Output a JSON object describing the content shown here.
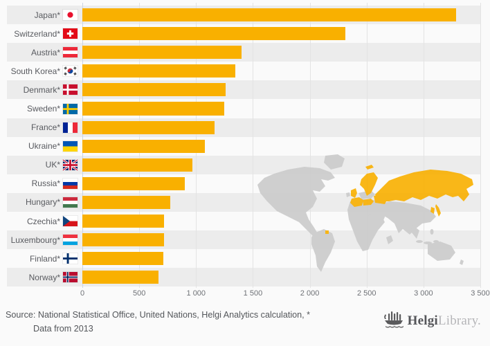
{
  "chart_data": {
    "type": "bar",
    "orientation": "horizontal",
    "title": "",
    "categories": [
      "Japan*",
      "Switzerland*",
      "Austria*",
      "South Korea*",
      "Denmark*",
      "Sweden*",
      "France*",
      "Ukraine*",
      "UK*",
      "Russia*",
      "Hungary*",
      "Czechia*",
      "Luxembourg*",
      "Finland*",
      "Norway*"
    ],
    "values": [
      3285,
      2315,
      1400,
      1345,
      1260,
      1250,
      1160,
      1075,
      970,
      903,
      775,
      720,
      720,
      710,
      672
    ],
    "flags": [
      "japan",
      "switzerland",
      "austria",
      "south-korea",
      "denmark",
      "sweden",
      "france",
      "ukraine",
      "uk",
      "russia",
      "hungary",
      "czechia",
      "luxembourg",
      "finland",
      "norway"
    ],
    "xlim": [
      0,
      3500
    ],
    "x_ticks": [
      "0",
      "500",
      "1 000",
      "1 500",
      "2 000",
      "2 500",
      "3 000",
      "3 500"
    ],
    "grid": true,
    "legend": "none",
    "bar_color": "#f9b000",
    "row_stripe_color": "#ececec",
    "map_land_color": "#cbcbcb",
    "map_highlight_color": "#f9b000"
  },
  "footer": {
    "source_line1": "Source: National Statistical Office, United Nations, Helgi Analytics calculation, *",
    "source_line2": "Data from 2013",
    "brand_primary": "Helgi",
    "brand_secondary": "Library."
  }
}
